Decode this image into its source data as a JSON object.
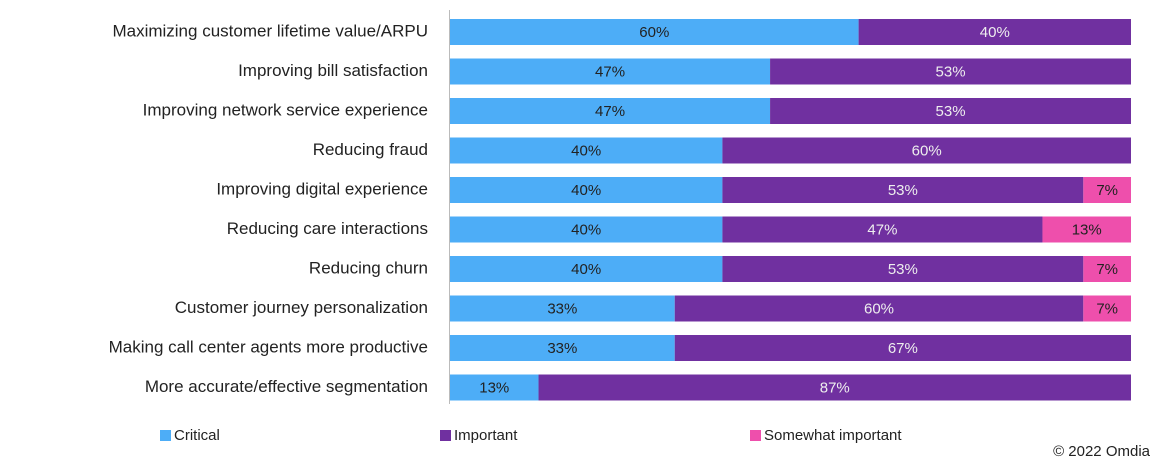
{
  "chart_data": {
    "type": "stacked-bar-horizontal",
    "categories": [
      "Maximizing customer lifetime value/ARPU",
      "Improving bill satisfaction",
      "Improving network service experience",
      "Reducing fraud",
      "Improving digital experience",
      "Reducing care interactions",
      "Reducing churn",
      "Customer journey personalization",
      "Making call center agents more productive",
      "More accurate/effective segmentation"
    ],
    "series": [
      {
        "name": "Critical",
        "color": "#4dadf7",
        "values": [
          60,
          47,
          47,
          40,
          40,
          40,
          40,
          33,
          33,
          13
        ],
        "value_labels": [
          "60%",
          "47%",
          "47%",
          "40%",
          "40%",
          "40%",
          "40%",
          "33%",
          "33%",
          "13%"
        ]
      },
      {
        "name": "Important",
        "color": "#7030a0",
        "values": [
          40,
          53,
          53,
          60,
          53,
          47,
          53,
          60,
          67,
          87
        ],
        "value_labels": [
          "40%",
          "53%",
          "53%",
          "60%",
          "53%",
          "47%",
          "53%",
          "60%",
          "67%",
          "87%"
        ]
      },
      {
        "name": "Somewhat important",
        "color": "#ee4fac",
        "values": [
          null,
          null,
          null,
          null,
          7,
          13,
          7,
          7,
          null,
          null
        ],
        "value_labels": [
          null,
          null,
          null,
          null,
          "7%",
          "13%",
          "7%",
          "7%",
          null,
          null
        ]
      }
    ],
    "xlim": [
      0,
      100
    ],
    "annotation": "© 2022 Omdia"
  }
}
